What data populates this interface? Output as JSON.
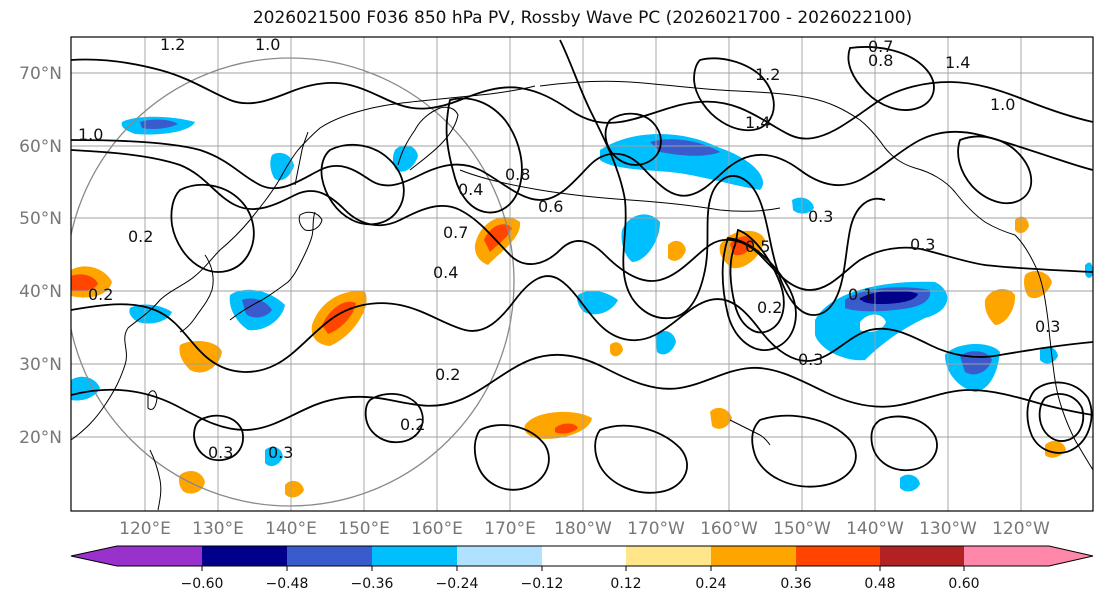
{
  "title": "2026021500 F036 850 hPa PV, Rossby Wave PC (2026021700 - 2026022100)",
  "latitude_labels": [
    "70°N",
    "60°N",
    "50°N",
    "40°N",
    "30°N",
    "20°N"
  ],
  "longitude_labels": [
    "120°E",
    "130°E",
    "140°E",
    "150°E",
    "160°E",
    "170°E",
    "180°W",
    "170°W",
    "160°W",
    "150°W",
    "140°W",
    "130°W",
    "120°W"
  ],
  "colorbar": {
    "tick_labels": [
      "−0.60",
      "−0.48",
      "−0.36",
      "−0.24",
      "−0.12",
      "0.12",
      "0.24",
      "0.36",
      "0.48",
      "0.60"
    ],
    "colors": [
      "#9932cc",
      "#00008b",
      "#3a5bcc",
      "#00bfff",
      "#b0e2ff",
      "#ffffff",
      "#ffe68a",
      "#ffa500",
      "#ff4500",
      "#b22222",
      "#ff88aa"
    ]
  },
  "contour_labels": [
    "1.2",
    "1.0",
    "0.7",
    "0.8",
    "1.4",
    "1.2",
    "1.0",
    "1.4",
    "1.0",
    "0.4",
    "0.8",
    "0.6",
    "0.7",
    "0.5",
    "0.3",
    "0.3",
    "0.2",
    "0.4",
    "0.2",
    "0.2",
    "0.3",
    "0.3",
    "0.3",
    "0.2",
    "0.3",
    "0.1",
    "0.2"
  ],
  "palette": {
    "contour": "#000000",
    "grid": "#a0a0a0",
    "coast": "#000000"
  }
}
